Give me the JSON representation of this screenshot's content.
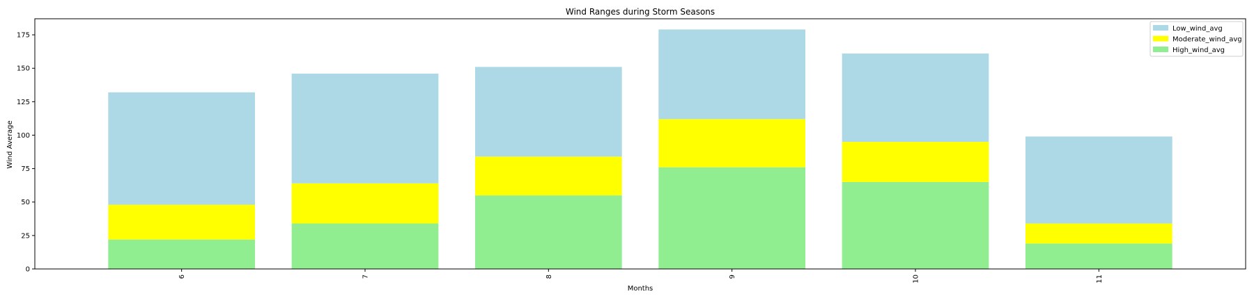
{
  "chart_data": {
    "type": "bar",
    "stacked": true,
    "title": "Wind Ranges during Storm Seasons",
    "xlabel": "Months",
    "ylabel": "Wind Average",
    "categories": [
      "6",
      "7",
      "8",
      "9",
      "10",
      "11"
    ],
    "series": [
      {
        "name": "High_wind_avg",
        "values": [
          22,
          34,
          55,
          76,
          65,
          19
        ],
        "color": "#90ee90"
      },
      {
        "name": "Moderate_wind_avg",
        "values": [
          26,
          30,
          29,
          36,
          30,
          15
        ],
        "color": "#ffff00"
      },
      {
        "name": "Low_wind_avg",
        "values": [
          84,
          82,
          67,
          67,
          66,
          65
        ],
        "color": "#add8e6"
      }
    ],
    "legend_order": [
      "Low_wind_avg",
      "Moderate_wind_avg",
      "High_wind_avg"
    ],
    "ylim": [
      0,
      187
    ],
    "yticks": [
      0,
      25,
      50,
      75,
      100,
      125,
      150,
      175
    ],
    "x_tick_rotation": 90,
    "grid": false,
    "legend_position": "top-right"
  }
}
